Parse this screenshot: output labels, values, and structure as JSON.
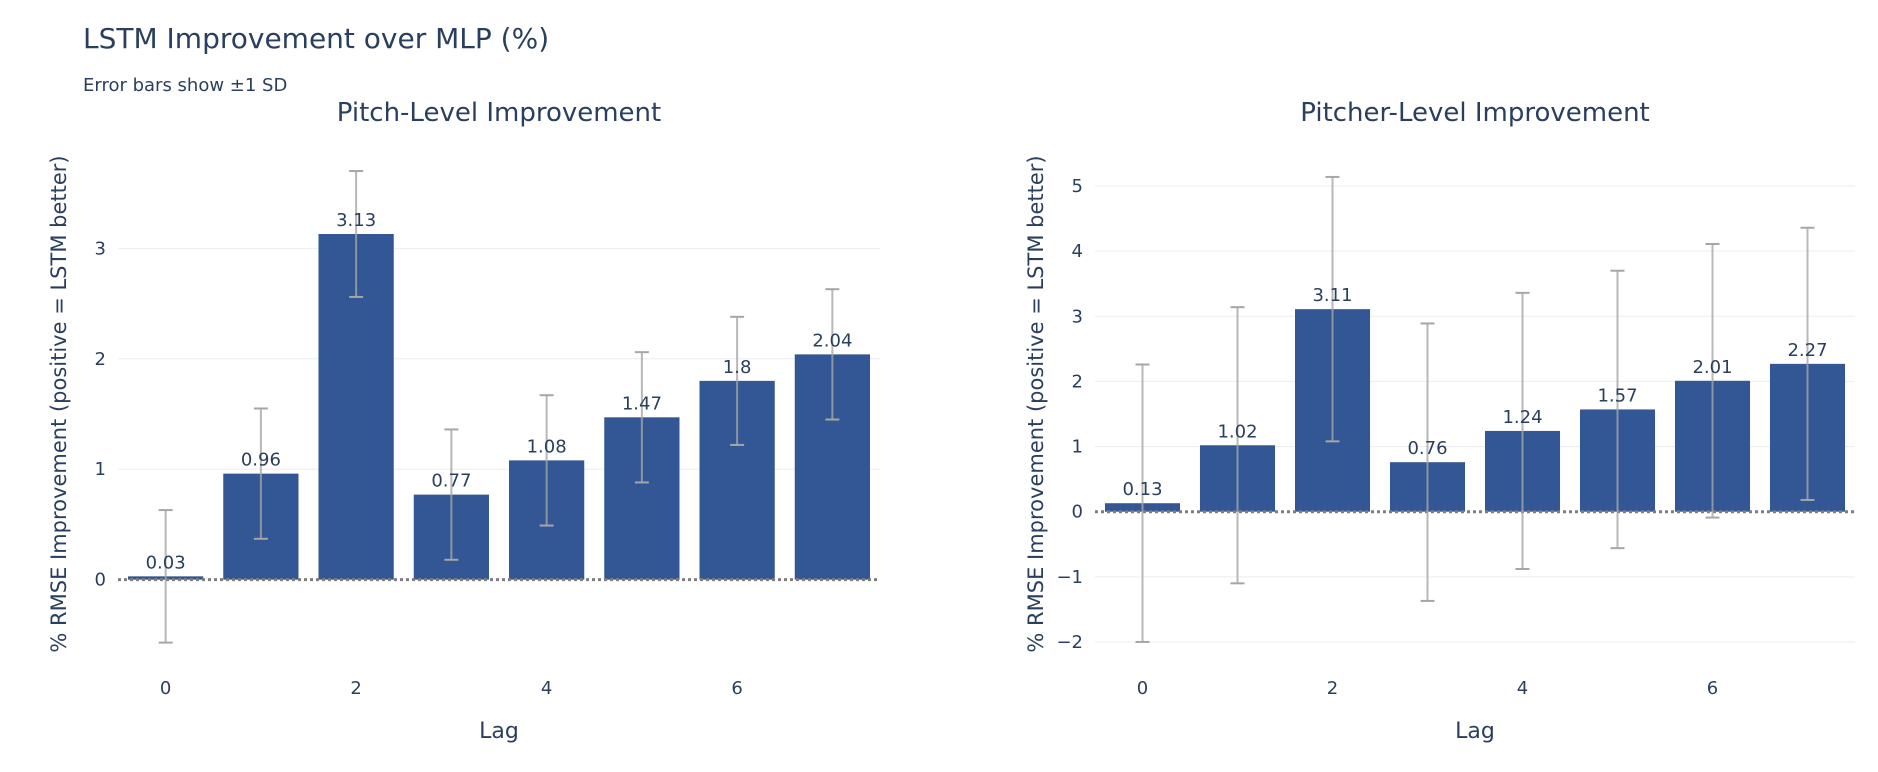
{
  "title": "LSTM Improvement over MLP (%)",
  "subtitle": "Error bars show ±1 SD",
  "colors": {
    "bar": "#335694",
    "grid": "#ebedf0",
    "zero_line": "#7f7f7f",
    "error_bar": "#a6a6a6"
  },
  "chart_data": [
    {
      "type": "bar",
      "title": "Pitch-Level Improvement",
      "xlabel": "Lag",
      "ylabel": "% RMSE Improvement (positive = LSTM better)",
      "x": [
        0,
        1,
        2,
        3,
        4,
        5,
        6,
        7
      ],
      "values": [
        0.03,
        0.96,
        3.13,
        0.77,
        1.08,
        1.47,
        1.8,
        2.04
      ],
      "labels": [
        "0.03",
        "0.96",
        "3.13",
        "0.77",
        "1.08",
        "1.47",
        "1.8",
        "2.04"
      ],
      "error_sd": [
        0.6,
        0.59,
        0.57,
        0.59,
        0.59,
        0.59,
        0.58,
        0.59
      ],
      "x_ticks": [
        0,
        2,
        4,
        6
      ],
      "y_ticks": [
        0,
        1,
        2,
        3
      ],
      "ylim": [
        -0.8,
        3.8
      ],
      "grid": true,
      "zero_line": "dotted"
    },
    {
      "type": "bar",
      "title": "Pitcher-Level Improvement",
      "xlabel": "Lag",
      "ylabel": "% RMSE Improvement (positive = LSTM better)",
      "x": [
        0,
        1,
        2,
        3,
        4,
        5,
        6,
        7
      ],
      "values": [
        0.13,
        1.02,
        3.11,
        0.76,
        1.24,
        1.57,
        2.01,
        2.27
      ],
      "labels": [
        "0.13",
        "1.02",
        "3.11",
        "0.76",
        "1.24",
        "1.57",
        "2.01",
        "2.27"
      ],
      "error_sd": [
        2.13,
        2.12,
        2.03,
        2.13,
        2.12,
        2.13,
        2.1,
        2.09
      ],
      "x_ticks": [
        0,
        2,
        4,
        6
      ],
      "y_ticks": [
        -2,
        -1,
        0,
        1,
        2,
        3,
        4,
        5
      ],
      "ylim": [
        -2.4,
        5.4
      ],
      "grid": true,
      "zero_line": "dotted"
    }
  ]
}
